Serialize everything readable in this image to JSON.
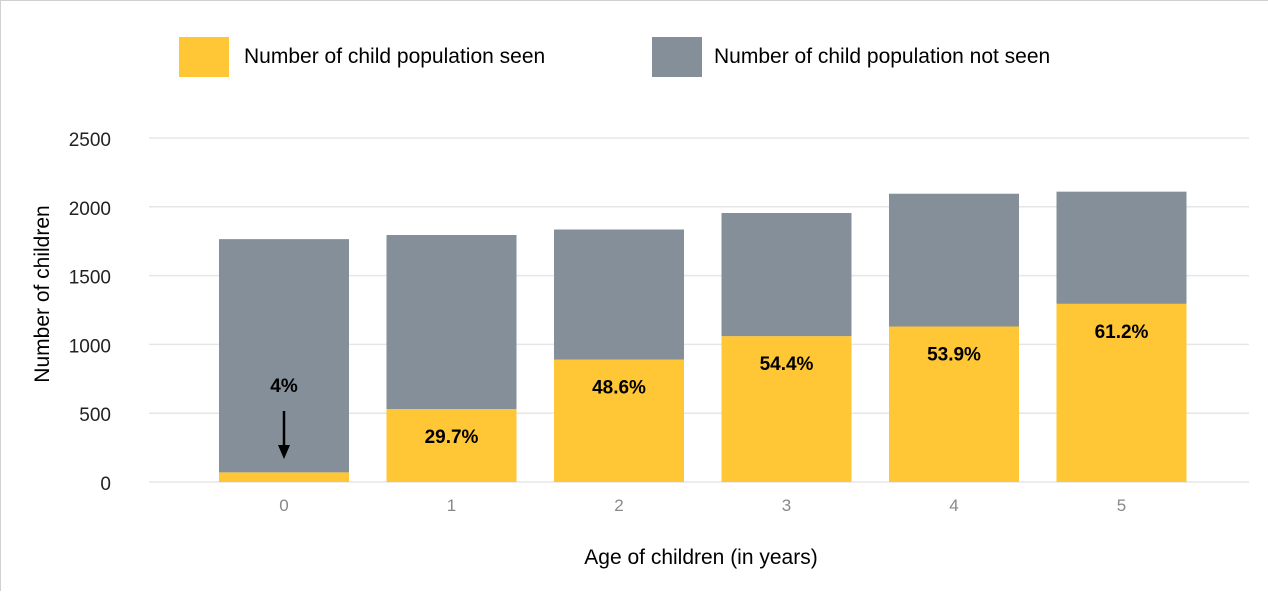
{
  "chart_data": {
    "type": "bar",
    "stacked": true,
    "categories": [
      "0",
      "1",
      "2",
      "3",
      "4",
      "5"
    ],
    "series": [
      {
        "name": "Number of child population seen",
        "color": "#FFC735",
        "values": [
          70,
          530,
          890,
          1060,
          1130,
          1295
        ]
      },
      {
        "name": "Number of child population not seen",
        "color": "#848F99",
        "values": [
          1695,
          1265,
          945,
          895,
          965,
          815
        ]
      }
    ],
    "data_labels": [
      "4%",
      "29.7%",
      "48.6%",
      "54.4%",
      "53.9%",
      "61.2%"
    ],
    "xlabel": "Age of children (in years)",
    "ylabel": "Number of children",
    "ylim": [
      0,
      2500
    ],
    "yticks": [
      0,
      500,
      1000,
      1500,
      2000,
      2500
    ],
    "grid": true,
    "legend_position": "top"
  }
}
